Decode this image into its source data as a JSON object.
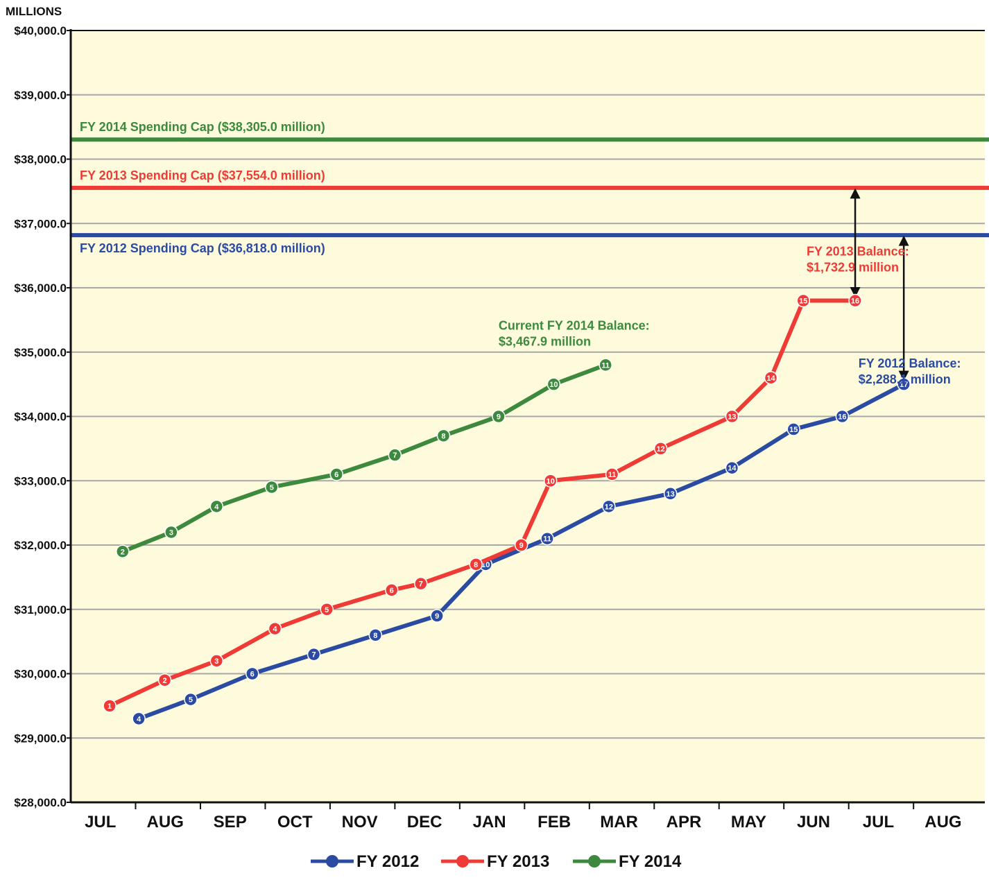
{
  "chart_data": {
    "type": "line",
    "title": "",
    "units_label": "MILLIONS",
    "ylim": [
      28000,
      40000
    ],
    "y_ticks": [
      28000,
      29000,
      30000,
      31000,
      32000,
      33000,
      34000,
      35000,
      36000,
      37000,
      38000,
      39000,
      40000
    ],
    "y_tick_labels": [
      "$28,000.0",
      "$29,000.0",
      "$30,000.0",
      "$31,000.0",
      "$32,000.0",
      "$33,000.0",
      "$34,000.0",
      "$35,000.0",
      "$36,000.0",
      "$37,000.0",
      "$38,000.0",
      "$39,000.0",
      "$40,000.0"
    ],
    "categories": [
      "JUL",
      "AUG",
      "SEP",
      "OCT",
      "NOV",
      "DEC",
      "JAN",
      "FEB",
      "MAR",
      "APR",
      "MAY",
      "JUN",
      "JUL",
      "AUG"
    ],
    "grid": true,
    "legend_position": "bottom",
    "colors": {
      "fy2012": "#2b4ba3",
      "fy2013": "#ef3b36",
      "fy2014": "#3d8a3e",
      "plot_bg": "#fdfbdc"
    },
    "caps": [
      {
        "label": "FY 2014 Spending Cap ($38,305.0 million)",
        "value": 38305.0,
        "color": "#3d8a3e"
      },
      {
        "label": "FY 2013 Spending Cap ($37,554.0 million)",
        "value": 37554.0,
        "color": "#ef3b36"
      },
      {
        "label": "FY 2012 Spending Cap ($36,818.0 million)",
        "value": 36818.0,
        "color": "#2b4ba3"
      }
    ],
    "series": [
      {
        "name": "FY 2012",
        "color": "#2b4ba3",
        "points": [
          {
            "n": "4",
            "x": 0.55,
            "y": 29300
          },
          {
            "n": "5",
            "x": 1.35,
            "y": 29600
          },
          {
            "n": "6",
            "x": 2.3,
            "y": 30000
          },
          {
            "n": "7",
            "x": 3.25,
            "y": 30300
          },
          {
            "n": "8",
            "x": 4.2,
            "y": 30600
          },
          {
            "n": "9",
            "x": 5.15,
            "y": 30900
          },
          {
            "n": "10",
            "x": 5.9,
            "y": 31700
          },
          {
            "n": "11",
            "x": 6.85,
            "y": 32100
          },
          {
            "n": "12",
            "x": 7.8,
            "y": 32600
          },
          {
            "n": "13",
            "x": 8.75,
            "y": 32800
          },
          {
            "n": "14",
            "x": 9.7,
            "y": 33200
          },
          {
            "n": "15",
            "x": 10.65,
            "y": 33800
          },
          {
            "n": "16",
            "x": 11.4,
            "y": 34000
          },
          {
            "n": "17",
            "x": 12.35,
            "y": 34500
          }
        ]
      },
      {
        "name": "FY 2013",
        "color": "#ef3b36",
        "points": [
          {
            "n": "1",
            "x": 0.1,
            "y": 29500
          },
          {
            "n": "2",
            "x": 0.95,
            "y": 29900
          },
          {
            "n": "3",
            "x": 1.75,
            "y": 30200
          },
          {
            "n": "4",
            "x": 2.65,
            "y": 30700
          },
          {
            "n": "5",
            "x": 3.45,
            "y": 31000
          },
          {
            "n": "6",
            "x": 4.45,
            "y": 31300
          },
          {
            "n": "7",
            "x": 4.9,
            "y": 31400
          },
          {
            "n": "8",
            "x": 5.75,
            "y": 31700
          },
          {
            "n": "9",
            "x": 6.45,
            "y": 32000
          },
          {
            "n": "10",
            "x": 6.9,
            "y": 33000
          },
          {
            "n": "11",
            "x": 7.85,
            "y": 33100
          },
          {
            "n": "12",
            "x": 8.6,
            "y": 33500
          },
          {
            "n": "13",
            "x": 9.7,
            "y": 34000
          },
          {
            "n": "14",
            "x": 10.3,
            "y": 34600
          },
          {
            "n": "15",
            "x": 10.8,
            "y": 35800
          },
          {
            "n": "16",
            "x": 11.6,
            "y": 35800
          }
        ]
      },
      {
        "name": "FY 2014",
        "color": "#3d8a3e",
        "points": [
          {
            "n": "2",
            "x": 0.3,
            "y": 31900
          },
          {
            "n": "3",
            "x": 1.05,
            "y": 32200
          },
          {
            "n": "4",
            "x": 1.75,
            "y": 32600
          },
          {
            "n": "5",
            "x": 2.6,
            "y": 32900
          },
          {
            "n": "6",
            "x": 3.6,
            "y": 33100
          },
          {
            "n": "7",
            "x": 4.5,
            "y": 33400
          },
          {
            "n": "8",
            "x": 5.25,
            "y": 33700
          },
          {
            "n": "9",
            "x": 6.1,
            "y": 34000
          },
          {
            "n": "10",
            "x": 6.95,
            "y": 34500
          },
          {
            "n": "11",
            "x": 7.75,
            "y": 34800
          }
        ]
      }
    ],
    "annotations": [
      {
        "lines": [
          "Current FY 2014 Balance:",
          "$3,467.9 million"
        ],
        "color": "#3d8a3e",
        "x": 6.1,
        "y": 35350
      },
      {
        "lines": [
          "FY 2013 Balance:",
          "$1,732.9 million"
        ],
        "color": "#ef3b36",
        "x": 10.85,
        "y": 36500
      },
      {
        "lines": [
          "FY 2012 Balance:",
          "$2,288.1 million"
        ],
        "color": "#2b4ba3",
        "x": 11.65,
        "y": 34760
      }
    ],
    "balance_arrows": [
      {
        "x": 11.6,
        "from": 37554.0,
        "to": 35800
      },
      {
        "x": 12.35,
        "from": 36818.0,
        "to": 34500
      }
    ]
  }
}
